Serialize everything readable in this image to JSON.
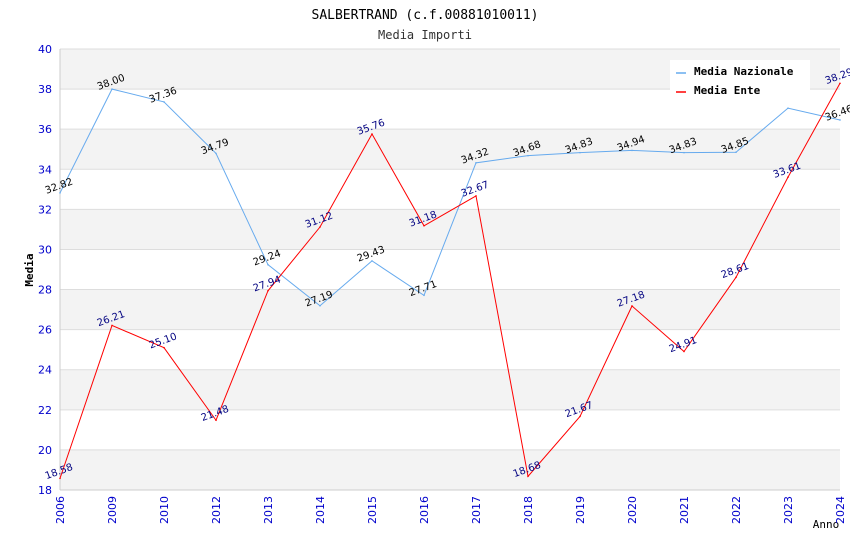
{
  "chart_data": {
    "type": "line",
    "title": "SALBERTRAND (c.f.00881010011)",
    "subtitle": "Media Importi",
    "xlabel": "Anno",
    "ylabel": "Media",
    "ylim": [
      18,
      40
    ],
    "yticks": [
      18,
      20,
      22,
      24,
      26,
      28,
      30,
      32,
      34,
      36,
      38,
      40
    ],
    "categories": [
      "2006",
      "2009",
      "2010",
      "2012",
      "2013",
      "2014",
      "2015",
      "2016",
      "2017",
      "2018",
      "2019",
      "2020",
      "2021",
      "2022",
      "2023",
      "2024"
    ],
    "grid": "horizontal bands",
    "legend_position": "top-right",
    "series": [
      {
        "name": "Media Nazionale",
        "color": "#66aaee",
        "label_color": "#000000",
        "values": [
          32.82,
          38.0,
          37.36,
          34.79,
          29.24,
          27.19,
          29.43,
          27.71,
          34.32,
          34.68,
          34.83,
          34.94,
          34.83,
          34.85,
          37.05,
          36.46
        ],
        "labels": [
          "32.82",
          "38.00",
          "37.36",
          "34.79",
          "29.24",
          "27.19",
          "29.43",
          "27.71",
          "34.32",
          "34.68",
          "34.83",
          "34.94",
          "34.83",
          "34.85",
          "",
          "36.46"
        ]
      },
      {
        "name": "Media Ente",
        "color": "#ff0000",
        "label_color": "#000080",
        "values": [
          18.58,
          26.21,
          25.1,
          21.48,
          27.94,
          31.12,
          35.76,
          31.18,
          32.67,
          18.68,
          21.67,
          27.18,
          24.91,
          28.61,
          33.61,
          38.29
        ],
        "labels": [
          "18.58",
          "26.21",
          "25.10",
          "21.48",
          "27.94",
          "31.12",
          "35.76",
          "31.18",
          "32.67",
          "18.68",
          "21.67",
          "27.18",
          "24.91",
          "28.61",
          "33.61",
          "38.29"
        ]
      }
    ]
  }
}
